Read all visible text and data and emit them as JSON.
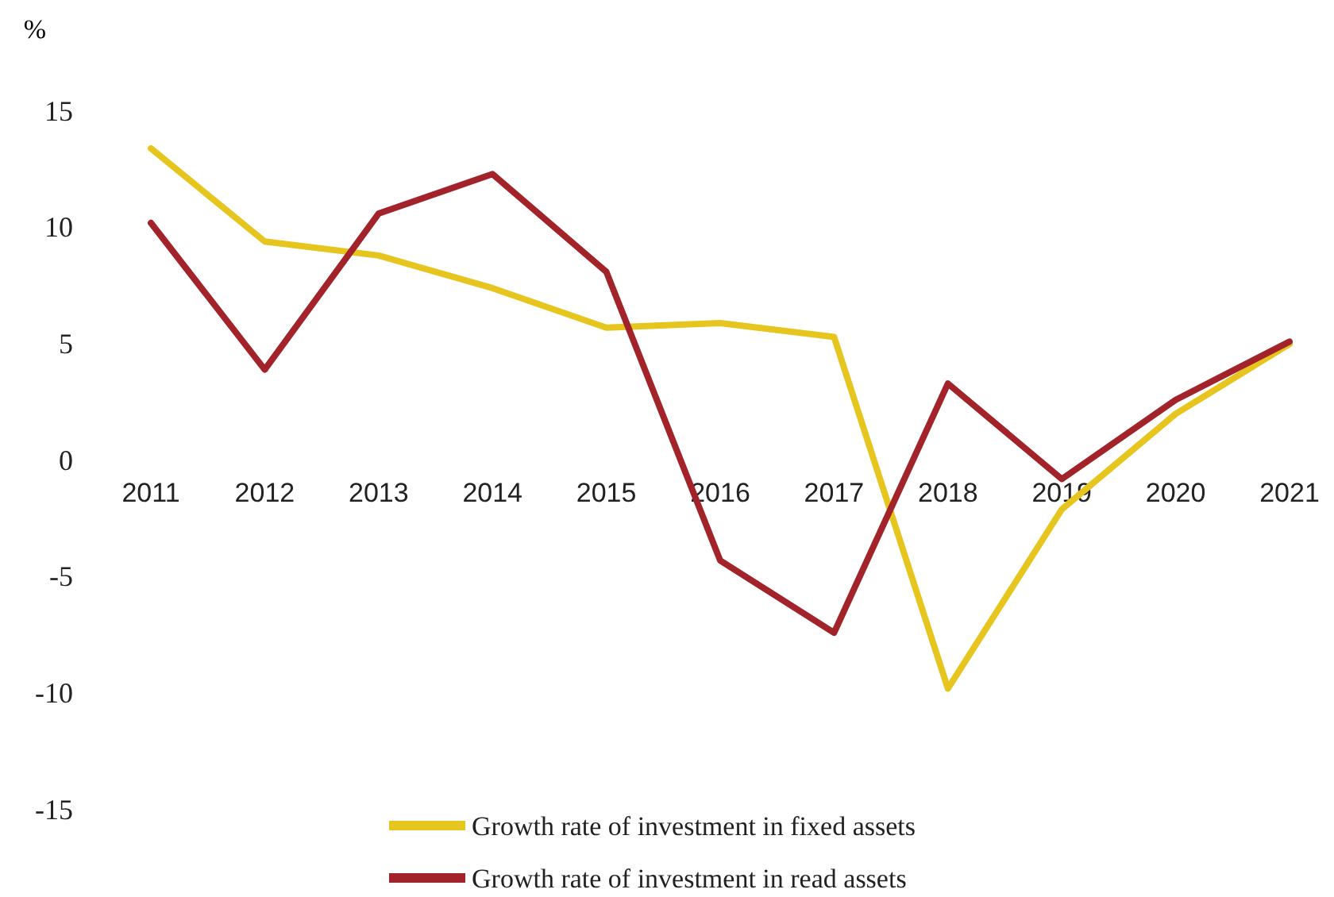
{
  "chart_data": {
    "type": "line",
    "ylabel": "%",
    "categories": [
      "2011",
      "2012",
      "2013",
      "2014",
      "2015",
      "2016",
      "2017",
      "2018",
      "2019",
      "2020",
      "2021"
    ],
    "series": [
      {
        "name": "Growth rate of investment in fixed assets",
        "color": "#e6c51e",
        "values": [
          13.4,
          9.4,
          8.8,
          7.4,
          5.7,
          5.9,
          5.3,
          -9.8,
          -2.1,
          2.0,
          5.0
        ]
      },
      {
        "name": "Growth rate of investment in read assets",
        "color": "#a3232b",
        "values": [
          10.2,
          3.9,
          10.6,
          12.3,
          8.1,
          -4.3,
          -7.4,
          3.3,
          -0.8,
          2.6,
          5.1
        ]
      }
    ],
    "ylim": [
      -15,
      15
    ],
    "yticks": [
      -15,
      -10,
      -5,
      0,
      5,
      10,
      15
    ],
    "grid": false,
    "legend": "bottom",
    "marker": "none",
    "line_style": "solid"
  }
}
